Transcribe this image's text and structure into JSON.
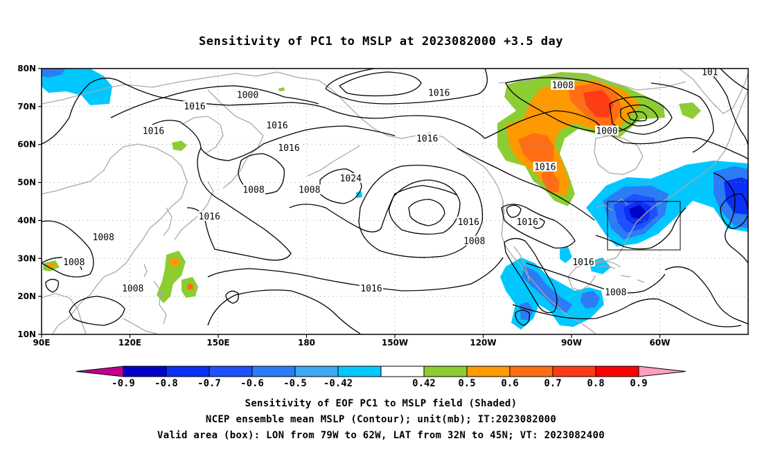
{
  "title": "Sensitivity of PC1 to MSLP at 2023082000 +3.5 day",
  "axes": {
    "lon_labels": [
      "90E",
      "120E",
      "150E",
      "180",
      "150W",
      "120W",
      "90W",
      "60W"
    ],
    "lat_labels": [
      "80N",
      "70N",
      "60N",
      "50N",
      "40N",
      "30N",
      "20N",
      "10N"
    ]
  },
  "contour_labels": [
    {
      "text": "1000",
      "lon": 160,
      "lat": 73
    },
    {
      "text": "1016",
      "lon": 142,
      "lat": 70
    },
    {
      "text": "1016",
      "lon": 170,
      "lat": 65
    },
    {
      "text": "1016",
      "lon": 128,
      "lat": 63.5
    },
    {
      "text": "1016",
      "lon": 174,
      "lat": 59
    },
    {
      "text": "1008",
      "lon": 162,
      "lat": 48
    },
    {
      "text": "1008",
      "lon": 181,
      "lat": 48
    },
    {
      "text": "1024",
      "lon": 195,
      "lat": 51
    },
    {
      "text": "1016",
      "lon": 147,
      "lat": 41
    },
    {
      "text": "1008",
      "lon": 111,
      "lat": 35.5
    },
    {
      "text": "1008",
      "lon": 101,
      "lat": 29
    },
    {
      "text": "1008",
      "lon": 121,
      "lat": 22
    },
    {
      "text": "1016",
      "lon": 202,
      "lat": 22
    },
    {
      "text": "1016",
      "lon": 221,
      "lat": 61.5
    },
    {
      "text": "1016",
      "lon": 225,
      "lat": 73.5
    },
    {
      "text": "1008",
      "lon": 267,
      "lat": 75.5
    },
    {
      "text": "1000",
      "lon": 282,
      "lat": 63.5
    },
    {
      "text": "1016",
      "lon": 261,
      "lat": 54
    },
    {
      "text": "1016",
      "lon": 235,
      "lat": 39.5
    },
    {
      "text": "1016",
      "lon": 255,
      "lat": 39.5
    },
    {
      "text": "1008",
      "lon": 237,
      "lat": 34.5
    },
    {
      "text": "1016",
      "lon": 274,
      "lat": 29
    },
    {
      "text": "1008",
      "lon": 285,
      "lat": 21
    },
    {
      "text": "101",
      "lon": 317,
      "lat": 79
    }
  ],
  "colorbar": {
    "labels": [
      "-0.9",
      "-0.8",
      "-0.7",
      "-0.6",
      "-0.5",
      "-0.42",
      "0.42",
      "0.5",
      "0.6",
      "0.7",
      "0.8",
      "0.9"
    ],
    "colors": [
      "#c0008c",
      "#0000c8",
      "#0a2ff5",
      "#1e50ff",
      "#2c7cf5",
      "#3caaf0",
      "#00c8ff",
      "#ffffff",
      "#8ccd32",
      "#ff9900",
      "#ff6e14",
      "#ff3c14",
      "#ff0000",
      "#ff9ebe"
    ]
  },
  "footer": {
    "line1": "Sensitivity of EOF PC1 to MSLP field (Shaded)",
    "line2": "NCEP ensemble mean MSLP (Contour); unit(mb); IT:2023082000",
    "line3": "Valid area (box): LON from 79W to 62W, LAT from 32N to 45N; VT: 2023082400"
  }
}
